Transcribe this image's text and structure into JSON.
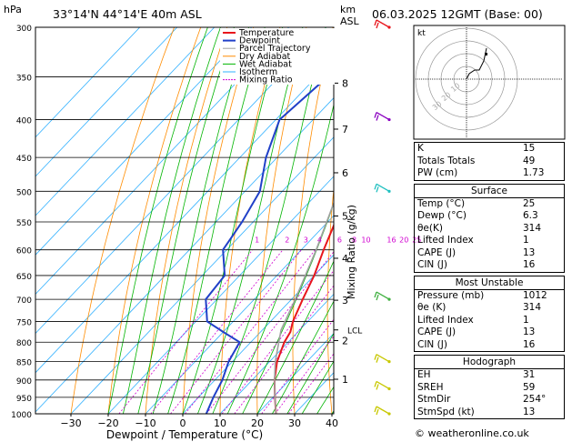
{
  "header": {
    "location": "33°14'N  44°14'E  40m  ASL",
    "datetime": "06.03.2025  12GMT  (Base: 00)",
    "hpa_unit": "hPa",
    "km_unit": "km",
    "asl_unit": "ASL"
  },
  "chart_data": {
    "type": "line",
    "title": "Skew-T log-P diagram",
    "xlabel": "Dewpoint / Temperature (°C)",
    "ylabel": "Mixing Ratio (g/kg)",
    "x_ticks": [
      "−30",
      "−20",
      "−10",
      "0",
      "10",
      "20",
      "30",
      "40"
    ],
    "x_tick_values": [
      -30,
      -20,
      -10,
      0,
      10,
      20,
      30,
      40
    ],
    "pressure_levels": [
      300,
      350,
      400,
      450,
      500,
      550,
      600,
      650,
      700,
      750,
      800,
      850,
      900,
      950,
      1000
    ],
    "pressure_labels": [
      "300",
      "350",
      "400",
      "450",
      "500",
      "550",
      "600",
      "650",
      "700",
      "750",
      "800",
      "850",
      "900",
      "950",
      "1000"
    ],
    "xlim": [
      -40,
      40
    ],
    "plim": [
      300,
      1000
    ],
    "km_levels": [
      {
        "label": "8",
        "p": 357
      },
      {
        "label": "7",
        "p": 412
      },
      {
        "label": "6",
        "p": 472
      },
      {
        "label": "5",
        "p": 540
      },
      {
        "label": "4",
        "p": 616
      },
      {
        "label": "3",
        "p": 702
      },
      {
        "label": "2",
        "p": 796
      },
      {
        "label": "1",
        "p": 898
      }
    ],
    "lcl": {
      "label": "LCL",
      "p": 770
    },
    "mixing_ratio_lines": [
      1,
      2,
      3,
      4,
      6,
      8,
      10,
      16,
      20,
      25
    ],
    "mixing_ratio_labels": [
      "1",
      "2",
      "3",
      "4",
      "6",
      "8",
      "10",
      "16",
      "20",
      "25"
    ],
    "legend": [
      "Temperature",
      "Dewpoint",
      "Parcel Trajectory",
      "Dry Adiabat",
      "Wet Adiabat",
      "Isotherm",
      "Mixing Ratio"
    ],
    "legend_placement": "top-center",
    "series": [
      {
        "name": "Temperature",
        "color": "#e8161c",
        "points": [
          [
            1000,
            25
          ],
          [
            950,
            20.5
          ],
          [
            900,
            16
          ],
          [
            850,
            12
          ],
          [
            800,
            9
          ],
          [
            775,
            8
          ],
          [
            750,
            6
          ],
          [
            700,
            3
          ],
          [
            650,
            0
          ],
          [
            600,
            -4
          ],
          [
            550,
            -8
          ],
          [
            500,
            -13
          ],
          [
            450,
            -19
          ],
          [
            400,
            -26
          ],
          [
            350,
            -35
          ],
          [
            300,
            -44
          ]
        ]
      },
      {
        "name": "Dewpoint",
        "color": "#2040c8",
        "points": [
          [
            1000,
            6.3
          ],
          [
            950,
            4
          ],
          [
            900,
            2
          ],
          [
            850,
            -1
          ],
          [
            800,
            -3
          ],
          [
            775,
            -10
          ],
          [
            750,
            -17
          ],
          [
            700,
            -23
          ],
          [
            650,
            -24
          ],
          [
            600,
            -31
          ],
          [
            550,
            -33
          ],
          [
            500,
            -36
          ],
          [
            450,
            -43
          ],
          [
            400,
            -49
          ],
          [
            350,
            -47
          ],
          [
            300,
            -49
          ]
        ]
      },
      {
        "name": "Parcel Trajectory",
        "color": "#a0a0a0",
        "points": [
          [
            1000,
            25
          ],
          [
            950,
            20.5
          ],
          [
            900,
            16
          ],
          [
            850,
            11.5
          ],
          [
            800,
            7.5
          ],
          [
            770,
            5
          ],
          [
            700,
            1
          ],
          [
            600,
            -6
          ],
          [
            500,
            -15
          ],
          [
            400,
            -28
          ],
          [
            300,
            -45
          ]
        ]
      }
    ],
    "isotherm_color": "#30b0ff",
    "dry_adiabat_color": "#ff8c00",
    "wet_adiabat_color": "#00b400",
    "mixing_ratio_color": "#d000d0",
    "wind_barbs": [
      {
        "p": 300,
        "color": "#e8161c"
      },
      {
        "p": 400,
        "color": "#8a00c0"
      },
      {
        "p": 500,
        "color": "#20c0c0"
      },
      {
        "p": 700,
        "color": "#40b040"
      },
      {
        "p": 850,
        "color": "#c8c800"
      },
      {
        "p": 925,
        "color": "#c8c800"
      },
      {
        "p": 1000,
        "color": "#c8c800"
      }
    ]
  },
  "hodograph": {
    "unit": "kt",
    "rings_label": [
      "10",
      "20",
      "30"
    ]
  },
  "indices": {
    "rows": [
      {
        "k": "K",
        "v": "15"
      },
      {
        "k": "Totals Totals",
        "v": "49"
      },
      {
        "k": "PW (cm)",
        "v": "1.73"
      }
    ]
  },
  "surface": {
    "title": "Surface",
    "rows": [
      {
        "k": "Temp (°C)",
        "v": "25"
      },
      {
        "k": "Dewp (°C)",
        "v": "6.3"
      },
      {
        "k": "θe(K)",
        "v": "314"
      },
      {
        "k": "Lifted Index",
        "v": "1"
      },
      {
        "k": "CAPE (J)",
        "v": "13"
      },
      {
        "k": "CIN (J)",
        "v": "16"
      }
    ]
  },
  "most_unstable": {
    "title": "Most Unstable",
    "rows": [
      {
        "k": "Pressure (mb)",
        "v": "1012"
      },
      {
        "k": "θe (K)",
        "v": "314"
      },
      {
        "k": "Lifted Index",
        "v": "1"
      },
      {
        "k": "CAPE (J)",
        "v": "13"
      },
      {
        "k": "CIN (J)",
        "v": "16"
      }
    ]
  },
  "hodo_table": {
    "title": "Hodograph",
    "rows": [
      {
        "k": "EH",
        "v": "31"
      },
      {
        "k": "SREH",
        "v": "59"
      },
      {
        "k": "StmDir",
        "v": "254°"
      },
      {
        "k": "StmSpd (kt)",
        "v": "13"
      }
    ]
  },
  "footer": {
    "copyright": "© weatheronline.co.uk"
  }
}
